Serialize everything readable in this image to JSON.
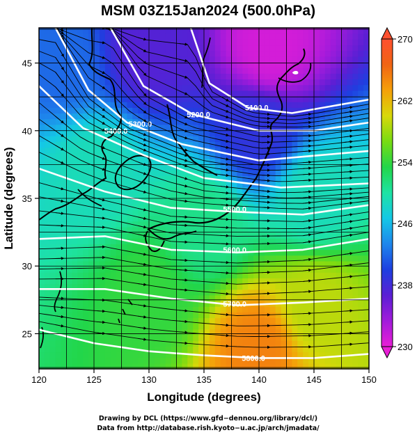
{
  "chart_data": {
    "type": "heatmap",
    "title": "MSM 03Z15Jan2024 (500.0hPa)",
    "xlabel": "Longitude (degrees)",
    "ylabel": "Latitude  (degrees)",
    "xlim": [
      120,
      150
    ],
    "ylim": [
      22.4,
      47.6
    ],
    "xticks": [
      "120",
      "125",
      "130",
      "135",
      "140",
      "145",
      "150"
    ],
    "yticks": [
      "25",
      "30",
      "35",
      "40",
      "45"
    ],
    "grid": true,
    "colorbar": {
      "min": 230,
      "max": 270,
      "ticks": [
        "230",
        "238",
        "246",
        "254",
        "262",
        "270"
      ],
      "colors": [
        "#e81ed6",
        "#a21bdb",
        "#5a1fd4",
        "#1e3fe0",
        "#1e86ec",
        "#14c8e6",
        "#1ee3a4",
        "#22d64a",
        "#78dc12",
        "#d8d80a",
        "#f5a00a",
        "#f06414",
        "#ff5030"
      ]
    },
    "field": "temperature (K), shaded",
    "samples": [
      {
        "lon": 141,
        "lat": 46,
        "value": 231
      },
      {
        "lon": 130,
        "lat": 46,
        "value": 237
      },
      {
        "lon": 122,
        "lat": 45,
        "value": 242
      },
      {
        "lon": 140,
        "lat": 40,
        "value": 239
      },
      {
        "lon": 125,
        "lat": 37,
        "value": 249
      },
      {
        "lon": 135,
        "lat": 33,
        "value": 251
      },
      {
        "lon": 145,
        "lat": 35,
        "value": 249
      },
      {
        "lon": 130,
        "lat": 28,
        "value": 254
      },
      {
        "lon": 145,
        "lat": 27,
        "value": 259
      },
      {
        "lon": 140,
        "lat": 24,
        "value": 265
      }
    ],
    "contour_labels": [
      {
        "text": "5100.0",
        "lon": 139.8,
        "lat": 41.7
      },
      {
        "text": "5200.0",
        "lon": 134.5,
        "lat": 41.2
      },
      {
        "text": "5300.0",
        "lon": 129.2,
        "lat": 40.5
      },
      {
        "text": "5400.0",
        "lon": 127.0,
        "lat": 40.0
      },
      {
        "text": "5500.0",
        "lon": 137.8,
        "lat": 34.2
      },
      {
        "text": "5600.0",
        "lon": 137.8,
        "lat": 31.2
      },
      {
        "text": "5700.0",
        "lon": 137.8,
        "lat": 27.2
      },
      {
        "text": "5800.0",
        "lon": 139.5,
        "lat": 23.2
      }
    ],
    "contours": [
      {
        "value": 5100,
        "points": [
          [
            133.8,
            47.6
          ],
          [
            135.5,
            43.5
          ],
          [
            139,
            41.7
          ],
          [
            143,
            41.3
          ],
          [
            150,
            42.3
          ]
        ]
      },
      {
        "value": 5200,
        "points": [
          [
            126.5,
            47.6
          ],
          [
            129.5,
            43.3
          ],
          [
            134,
            41.2
          ],
          [
            140,
            40
          ],
          [
            145,
            40
          ],
          [
            150,
            40.6
          ]
        ]
      },
      {
        "value": 5300,
        "points": [
          [
            121.5,
            47.6
          ],
          [
            124.5,
            43
          ],
          [
            128,
            40.6
          ],
          [
            133,
            39
          ],
          [
            140,
            37.8
          ],
          [
            150,
            38.5
          ]
        ]
      },
      {
        "value": 5400,
        "points": [
          [
            120,
            43.3
          ],
          [
            124,
            40.2
          ],
          [
            129.5,
            38.2
          ],
          [
            135,
            36.5
          ],
          [
            142,
            35.8
          ],
          [
            150,
            36.1
          ]
        ]
      },
      {
        "value": 5500,
        "points": [
          [
            120,
            37.2
          ],
          [
            126,
            35.5
          ],
          [
            132,
            34.3
          ],
          [
            138,
            34
          ],
          [
            144,
            33.8
          ],
          [
            150,
            34.5
          ]
        ]
      },
      {
        "value": 5600,
        "points": [
          [
            120,
            32
          ],
          [
            126,
            32.2
          ],
          [
            132,
            31.2
          ],
          [
            138,
            31
          ],
          [
            144,
            31.2
          ],
          [
            150,
            32
          ]
        ]
      },
      {
        "value": 5700,
        "points": [
          [
            120,
            28.3
          ],
          [
            126,
            28.3
          ],
          [
            132,
            27.6
          ],
          [
            138,
            27.1
          ],
          [
            144,
            27.3
          ],
          [
            150,
            27.6
          ]
        ]
      },
      {
        "value": 5800,
        "points": [
          [
            120,
            25.3
          ],
          [
            125,
            24.3
          ],
          [
            130,
            23.7
          ],
          [
            135,
            23.4
          ],
          [
            140,
            23.2
          ],
          [
            145,
            23.2
          ],
          [
            150,
            23.5
          ]
        ]
      }
    ]
  },
  "credits": {
    "line1": "Drawing by DCL (https://www.gfd−dennou.org/library/dcl/)",
    "line2": "Data from http://database.rish.kyoto−u.ac.jp/arch/jmadata/"
  }
}
